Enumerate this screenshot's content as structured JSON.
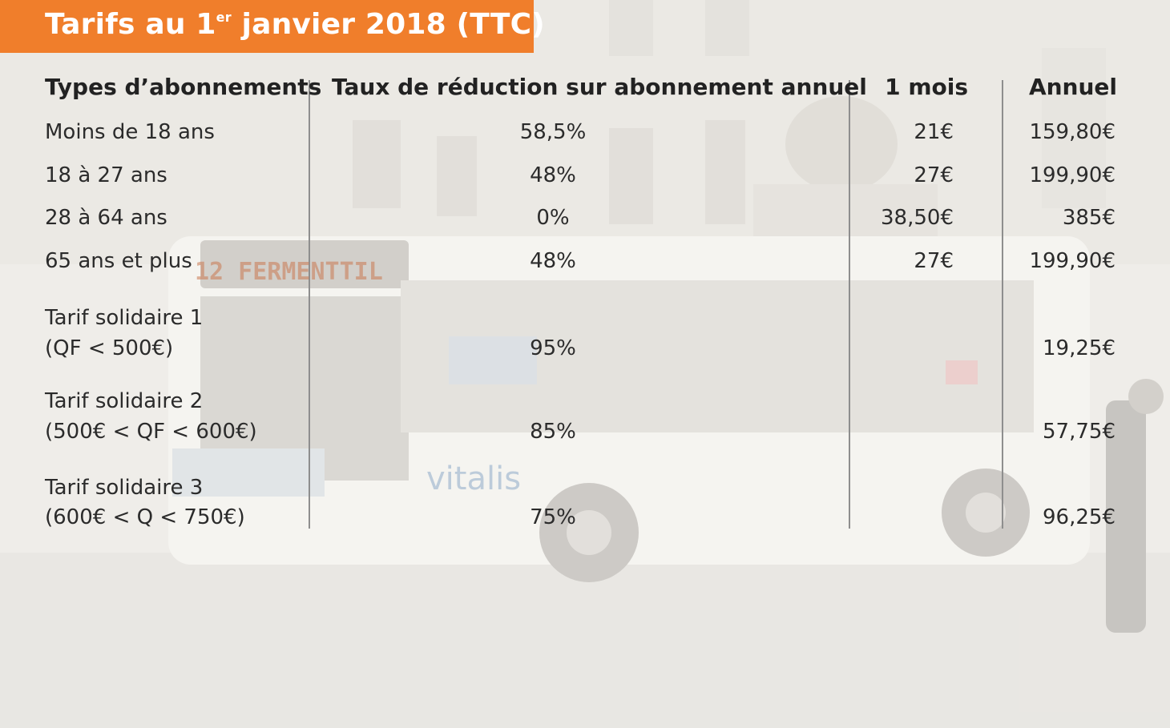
{
  "title": {
    "prefix": "Tarifs au 1",
    "superscript": "er",
    "suffix": " janvier 2018 (TTC)"
  },
  "table": {
    "headers": {
      "type": "Types d’abonnements",
      "reduction": "Taux de réduction sur abonnement annuel",
      "monthly": "1 mois",
      "annual": "Annuel"
    },
    "rows": [
      {
        "line1": "Moins de 18 ans",
        "line2": "",
        "reduction": "58,5%",
        "monthly": "21€",
        "annual": "159,80€"
      },
      {
        "line1": "18 à 27 ans",
        "line2": "",
        "reduction": "48%",
        "monthly": "27€",
        "annual": "199,90€"
      },
      {
        "line1": "28 à 64 ans",
        "line2": "",
        "reduction": "0%",
        "monthly": "38,50€",
        "annual": "385€"
      },
      {
        "line1": "65 ans et plus",
        "line2": "",
        "reduction": "48%",
        "monthly": "27€",
        "annual": "199,90€"
      },
      {
        "line1": "Tarif solidaire 1",
        "line2": "(QF < 500€)",
        "reduction": "95%",
        "monthly": "",
        "annual": "19,25€"
      },
      {
        "line1": "Tarif solidaire 2",
        "line2": "(500€ < QF < 600€)",
        "reduction": "85%",
        "monthly": "",
        "annual": "57,75€"
      },
      {
        "line1": "Tarif solidaire 3",
        "line2": "(600€ < Q < 750€)",
        "reduction": "75%",
        "monthly": "",
        "annual": "96,25€"
      }
    ]
  },
  "photo": {
    "bus_destination": "12 FERMENTTIL",
    "bus_brand": "vitalis"
  },
  "colors": {
    "banner": "#f07e2b",
    "banner_text": "#ffffff",
    "text": "#2b2b2b"
  }
}
